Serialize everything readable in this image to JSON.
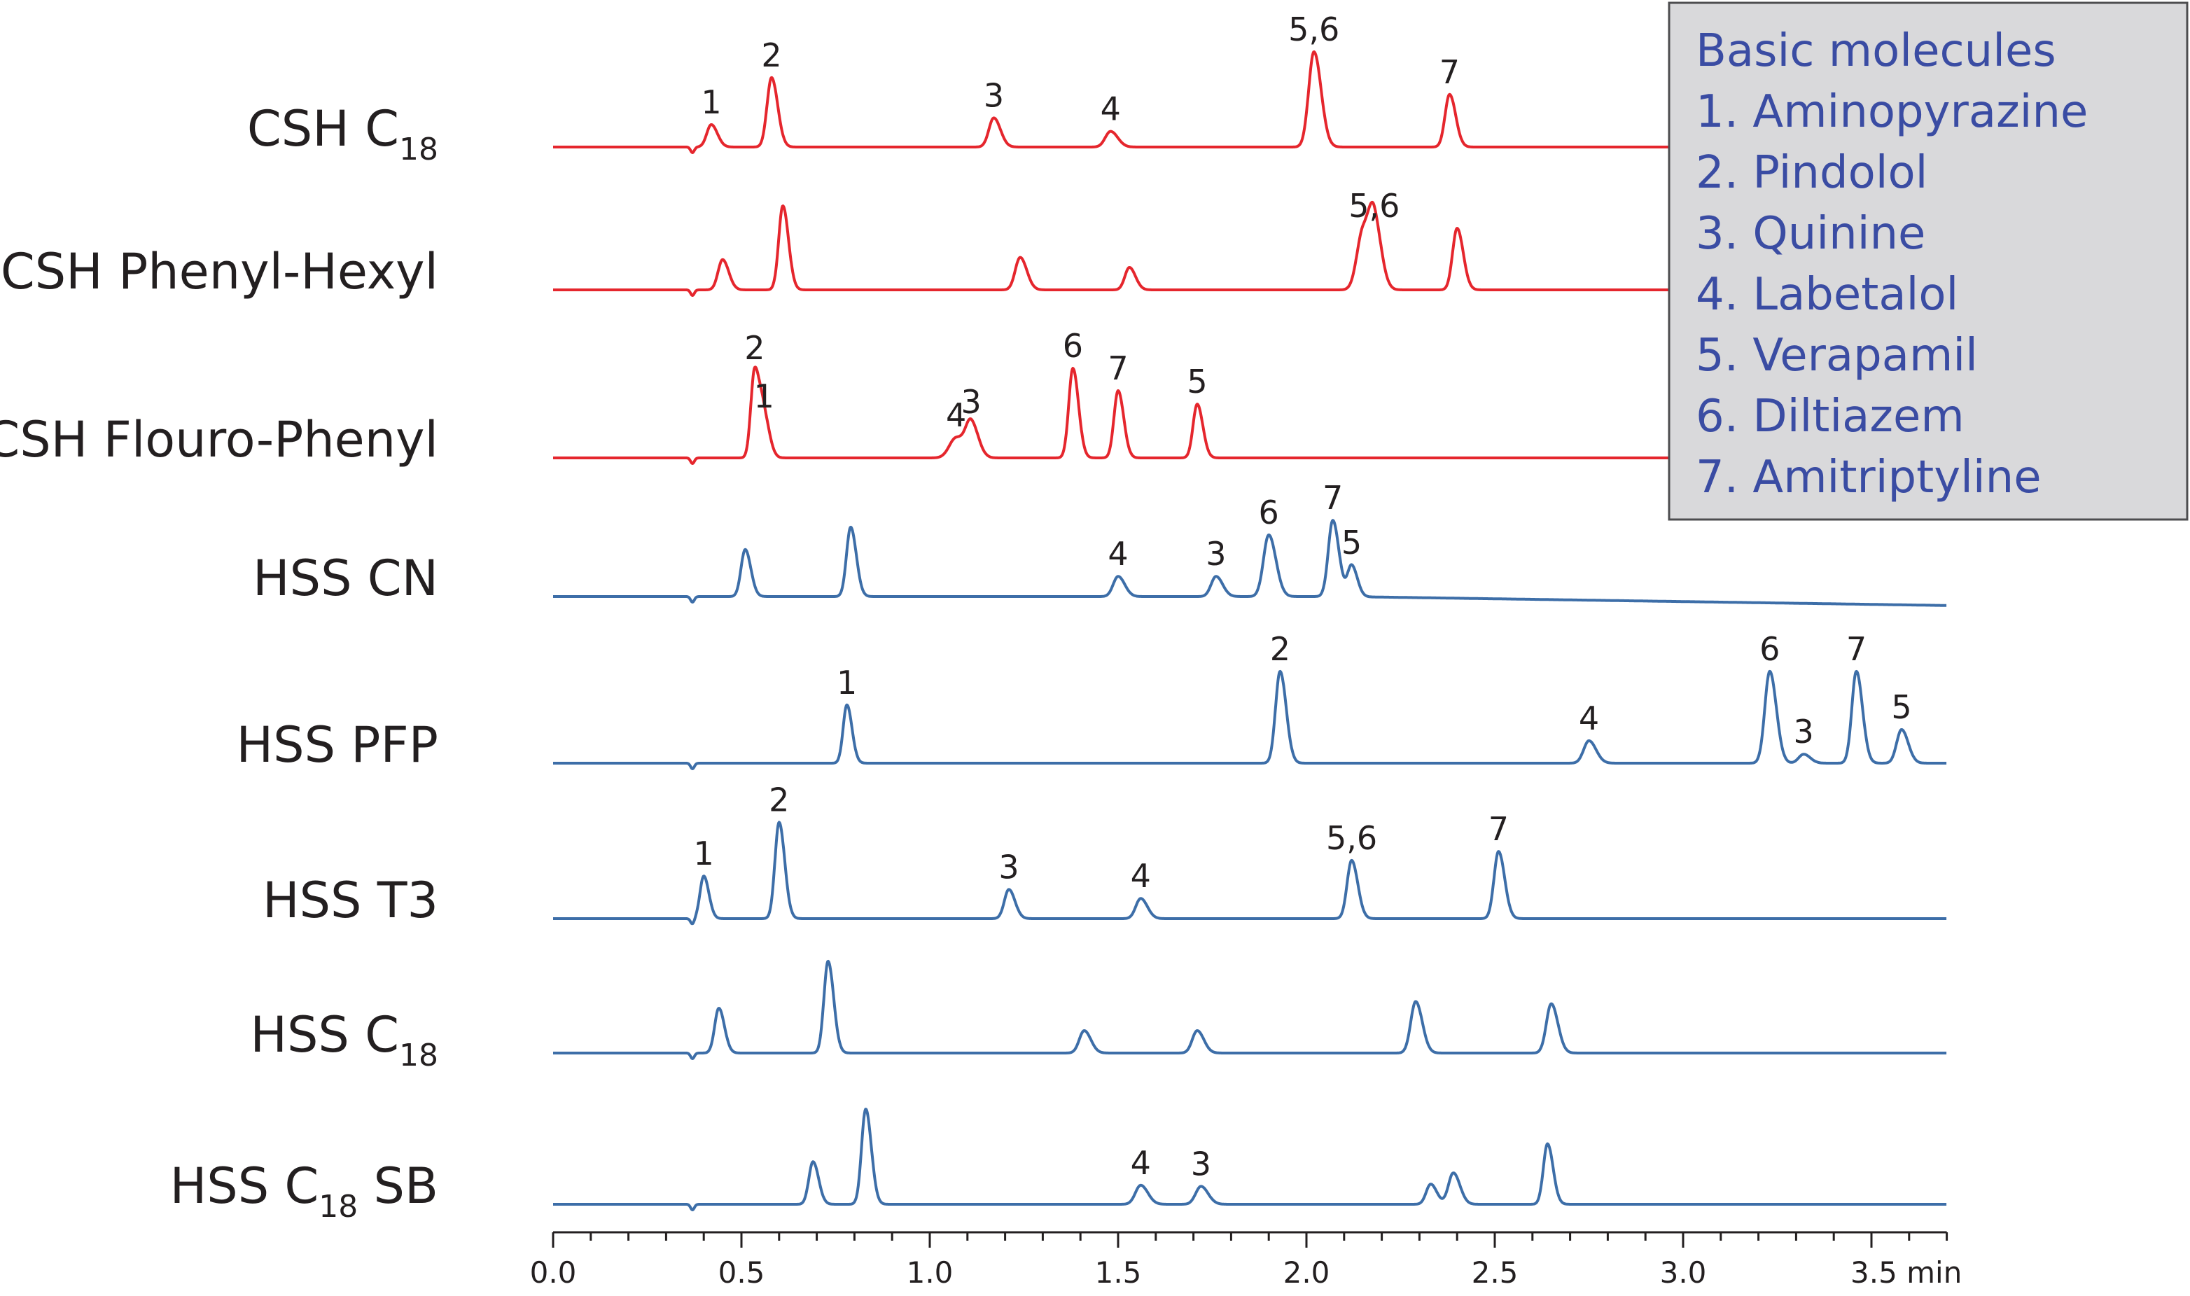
{
  "chart_data": {
    "type": "line",
    "x_unit": "min",
    "xlim": [
      0,
      3.7
    ],
    "x_ticks": [
      {
        "value": 0.0,
        "label": "0.0"
      },
      {
        "value": 0.5,
        "label": "0.5"
      },
      {
        "value": 1.0,
        "label": "1.0"
      },
      {
        "value": 1.5,
        "label": "1.5"
      },
      {
        "value": 2.0,
        "label": "2.0"
      },
      {
        "value": 2.5,
        "label": "2.5"
      },
      {
        "value": 3.0,
        "label": "3.0"
      },
      {
        "value": 3.5,
        "label": "3.5 min"
      }
    ],
    "legend": {
      "title": "Basic molecules",
      "items": [
        "1. Aminopyrazine",
        "2. Pindolol",
        "3. Quinine",
        "4. Labetalol",
        "5. Verapamil",
        "6. Diltiazem",
        "7. Amitriptyline"
      ],
      "placement": "top-right"
    },
    "series": [
      {
        "label_parts": [
          "CSH C",
          "18",
          ""
        ],
        "color": "#e5262d",
        "peaks": [
          {
            "x": 0.42,
            "h": 0.2,
            "w": 0.012,
            "label": "1"
          },
          {
            "x": 0.58,
            "h": 0.62,
            "w": 0.012,
            "label": "2"
          },
          {
            "x": 1.17,
            "h": 0.26,
            "w": 0.013,
            "label": "3"
          },
          {
            "x": 1.48,
            "h": 0.14,
            "w": 0.014,
            "label": "4"
          },
          {
            "x": 2.02,
            "h": 0.85,
            "w": 0.014,
            "label": "5,6"
          },
          {
            "x": 2.38,
            "h": 0.47,
            "w": 0.012,
            "label": "7"
          }
        ]
      },
      {
        "label_parts": [
          "CSH Phenyl-Hexyl",
          "",
          ""
        ],
        "color": "#e5262d",
        "peaks": [
          {
            "x": 0.45,
            "h": 0.27,
            "w": 0.012,
            "label": ""
          },
          {
            "x": 0.61,
            "h": 0.75,
            "w": 0.011,
            "label": ""
          },
          {
            "x": 1.24,
            "h": 0.29,
            "w": 0.013,
            "label": ""
          },
          {
            "x": 1.53,
            "h": 0.2,
            "w": 0.012,
            "label": ""
          },
          {
            "x": 2.15,
            "h": 0.52,
            "w": 0.016,
            "label": ""
          },
          {
            "x": 2.18,
            "h": 0.55,
            "w": 0.014,
            "label": "5,6"
          },
          {
            "x": 2.4,
            "h": 0.55,
            "w": 0.012,
            "label": ""
          }
        ]
      },
      {
        "label_parts": [
          "CSH Flouro-Phenyl",
          "",
          ""
        ],
        "color": "#e5262d",
        "peaks": [
          {
            "x": 0.535,
            "h": 0.78,
            "w": 0.01,
            "label": "2"
          },
          {
            "x": 0.56,
            "h": 0.35,
            "w": 0.011,
            "label": "1"
          },
          {
            "x": 1.07,
            "h": 0.18,
            "w": 0.018,
            "label": "4"
          },
          {
            "x": 1.11,
            "h": 0.3,
            "w": 0.014,
            "label": "3"
          },
          {
            "x": 1.38,
            "h": 0.8,
            "w": 0.011,
            "label": "6"
          },
          {
            "x": 1.5,
            "h": 0.6,
            "w": 0.011,
            "label": "7"
          },
          {
            "x": 1.71,
            "h": 0.48,
            "w": 0.011,
            "label": "5"
          }
        ]
      },
      {
        "label_parts": [
          "HSS CN",
          "",
          ""
        ],
        "color": "#3d6ea8",
        "peaks": [
          {
            "x": 0.51,
            "h": 0.42,
            "w": 0.011,
            "label": ""
          },
          {
            "x": 0.79,
            "h": 0.62,
            "w": 0.011,
            "label": ""
          },
          {
            "x": 1.5,
            "h": 0.18,
            "w": 0.013,
            "label": "4"
          },
          {
            "x": 1.76,
            "h": 0.18,
            "w": 0.013,
            "label": "3"
          },
          {
            "x": 1.9,
            "h": 0.55,
            "w": 0.014,
            "label": "6"
          },
          {
            "x": 2.07,
            "h": 0.68,
            "w": 0.012,
            "label": "7"
          },
          {
            "x": 2.12,
            "h": 0.28,
            "w": 0.011,
            "label": "5"
          }
        ]
      },
      {
        "label_parts": [
          "HSS PFP",
          "",
          ""
        ],
        "color": "#3d6ea8",
        "peaks": [
          {
            "x": 0.78,
            "h": 0.52,
            "w": 0.01,
            "label": "1"
          },
          {
            "x": 1.93,
            "h": 0.82,
            "w": 0.012,
            "label": "2"
          },
          {
            "x": 2.75,
            "h": 0.2,
            "w": 0.014,
            "label": "4"
          },
          {
            "x": 3.23,
            "h": 0.82,
            "w": 0.013,
            "label": "6"
          },
          {
            "x": 3.32,
            "h": 0.08,
            "w": 0.013,
            "label": "3"
          },
          {
            "x": 3.46,
            "h": 0.82,
            "w": 0.012,
            "label": "7"
          },
          {
            "x": 3.58,
            "h": 0.3,
            "w": 0.013,
            "label": "5"
          }
        ]
      },
      {
        "label_parts": [
          "HSS T3",
          "",
          ""
        ],
        "color": "#3d6ea8",
        "peaks": [
          {
            "x": 0.4,
            "h": 0.38,
            "w": 0.01,
            "label": "1"
          },
          {
            "x": 0.6,
            "h": 0.86,
            "w": 0.011,
            "label": "2"
          },
          {
            "x": 1.21,
            "h": 0.26,
            "w": 0.012,
            "label": "3"
          },
          {
            "x": 1.56,
            "h": 0.18,
            "w": 0.013,
            "label": "4"
          },
          {
            "x": 2.12,
            "h": 0.52,
            "w": 0.012,
            "label": "5,6"
          },
          {
            "x": 2.51,
            "h": 0.6,
            "w": 0.012,
            "label": "7"
          }
        ]
      },
      {
        "label_parts": [
          "HSS C",
          "18",
          ""
        ],
        "color": "#3d6ea8",
        "peaks": [
          {
            "x": 0.44,
            "h": 0.4,
            "w": 0.011,
            "label": ""
          },
          {
            "x": 0.73,
            "h": 0.82,
            "w": 0.011,
            "label": ""
          },
          {
            "x": 1.41,
            "h": 0.2,
            "w": 0.013,
            "label": ""
          },
          {
            "x": 1.71,
            "h": 0.2,
            "w": 0.013,
            "label": ""
          },
          {
            "x": 2.29,
            "h": 0.46,
            "w": 0.013,
            "label": ""
          },
          {
            "x": 2.65,
            "h": 0.44,
            "w": 0.013,
            "label": ""
          }
        ]
      },
      {
        "label_parts": [
          "HSS C",
          "18",
          " SB"
        ],
        "color": "#3d6ea8",
        "peaks": [
          {
            "x": 0.69,
            "h": 0.38,
            "w": 0.011,
            "label": ""
          },
          {
            "x": 0.83,
            "h": 0.85,
            "w": 0.011,
            "label": ""
          },
          {
            "x": 1.56,
            "h": 0.17,
            "w": 0.014,
            "label": "4"
          },
          {
            "x": 1.72,
            "h": 0.16,
            "w": 0.014,
            "label": "3"
          },
          {
            "x": 2.33,
            "h": 0.18,
            "w": 0.012,
            "label": ""
          },
          {
            "x": 2.39,
            "h": 0.28,
            "w": 0.013,
            "label": ""
          },
          {
            "x": 2.64,
            "h": 0.54,
            "w": 0.011,
            "label": ""
          }
        ]
      }
    ]
  }
}
